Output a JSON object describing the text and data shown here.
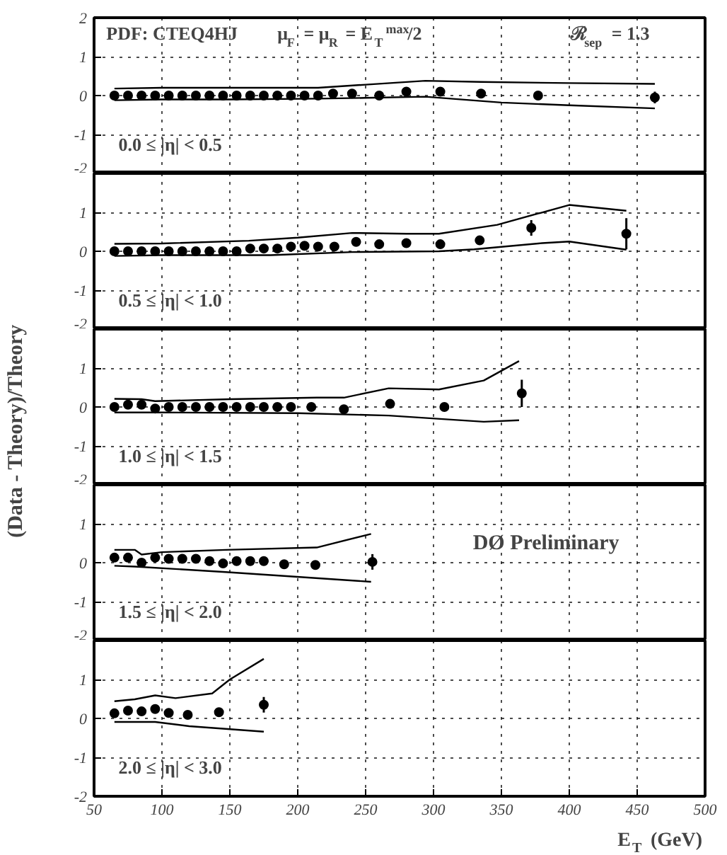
{
  "chart_data": [
    {
      "type": "scatter",
      "title": "0.0 ≤ |η| < 0.5",
      "annotations": [
        "PDF: CTEQ4HJ",
        "μ$_{F}$ = μ$_{R}$ = E$_{T}$$^{max}$/2",
        "ℛ$_{sep}$ = 1.3"
      ],
      "xlim": [
        50,
        500
      ],
      "ylim": [
        -2,
        2
      ],
      "xticks": [
        50,
        100,
        150,
        200,
        250,
        300,
        350,
        400,
        450,
        500
      ],
      "yticks": [
        -2,
        -1,
        0,
        1,
        2
      ],
      "grid": true,
      "tick_labels": "y",
      "x": [
        65,
        75,
        85,
        95,
        105,
        115,
        125,
        135,
        145,
        155,
        165,
        175,
        185,
        195,
        205,
        215,
        226,
        240,
        260,
        280,
        305,
        335,
        377,
        463
      ],
      "series": [
        {
          "color": "#000000",
          "marker": "circle",
          "values": [
            0,
            0,
            0,
            0,
            0,
            0,
            0,
            0,
            0,
            0,
            0,
            0,
            0,
            0,
            0,
            0,
            0.05,
            0.05,
            0,
            0.1,
            0.1,
            0.05,
            0,
            -0.05
          ],
          "errors": [
            null,
            null,
            null,
            null,
            null,
            null,
            null,
            null,
            null,
            null,
            null,
            null,
            null,
            null,
            null,
            null,
            null,
            null,
            null,
            null,
            null,
            null,
            null,
            0.15
          ]
        },
        {
          "type": "line",
          "color": "#000000",
          "x": [
            65,
            100,
            150,
            215,
            250,
            294,
            335,
            400,
            463
          ],
          "values": [
            0.18,
            0.2,
            0.2,
            0.2,
            0.28,
            0.38,
            0.35,
            0.32,
            0.3
          ]
        },
        {
          "type": "line",
          "color": "#000000",
          "x": [
            65,
            100,
            150,
            215,
            250,
            294,
            350,
            400,
            463
          ],
          "values": [
            -0.12,
            -0.1,
            -0.1,
            -0.08,
            -0.06,
            -0.03,
            -0.18,
            -0.25,
            -0.33
          ]
        }
      ]
    },
    {
      "type": "scatter",
      "title": "0.5 ≤ |η| < 1.0",
      "xlim": [
        50,
        500
      ],
      "ylim": [
        -2,
        2
      ],
      "xticks": [
        50,
        100,
        150,
        200,
        250,
        300,
        350,
        400,
        450,
        500
      ],
      "yticks": [
        -2,
        -1,
        0,
        1
      ],
      "grid": true,
      "tick_labels": "y",
      "x": [
        65,
        75,
        85,
        95,
        105,
        115,
        125,
        135,
        145,
        155,
        165,
        175,
        185,
        195,
        205,
        215,
        227,
        243,
        260,
        280,
        305,
        334,
        372,
        442
      ],
      "series": [
        {
          "color": "#000000",
          "marker": "circle",
          "values": [
            0,
            0,
            0,
            0,
            0,
            0,
            0,
            0,
            0,
            0,
            0.07,
            0.07,
            0.07,
            0.12,
            0.14,
            0.12,
            0.12,
            0.24,
            0.18,
            0.21,
            0.18,
            0.28,
            0.6,
            0.45
          ],
          "errors": [
            null,
            null,
            null,
            null,
            null,
            null,
            null,
            null,
            null,
            null,
            null,
            null,
            null,
            null,
            null,
            null,
            null,
            null,
            null,
            null,
            null,
            0.1,
            0.2,
            0.4
          ]
        },
        {
          "type": "line",
          "color": "#000000",
          "x": [
            65,
            100,
            164,
            200,
            240,
            280,
            304,
            347,
            400,
            442
          ],
          "values": [
            0.19,
            0.2,
            0.27,
            0.35,
            0.47,
            0.45,
            0.45,
            0.68,
            1.19,
            1.04
          ]
        },
        {
          "type": "line",
          "color": "#000000",
          "x": [
            65,
            100,
            180,
            240,
            304,
            330,
            380,
            400,
            442
          ],
          "values": [
            -0.12,
            -0.1,
            -0.1,
            -0.02,
            0,
            0.05,
            0.21,
            0.25,
            0.04
          ]
        }
      ]
    },
    {
      "type": "scatter",
      "title": "1.0 ≤ |η| < 1.5",
      "ylabel": "(Data - Theory)/Theory",
      "xlim": [
        50,
        500
      ],
      "ylim": [
        -2,
        2
      ],
      "xticks": [
        50,
        100,
        150,
        200,
        250,
        300,
        350,
        400,
        450,
        500
      ],
      "yticks": [
        -2,
        -1,
        0,
        1
      ],
      "grid": true,
      "tick_labels": "y",
      "x": [
        65,
        75,
        85,
        95,
        105,
        115,
        125,
        135,
        145,
        155,
        165,
        175,
        185,
        195,
        210,
        234,
        268,
        308,
        365
      ],
      "series": [
        {
          "color": "#000000",
          "marker": "circle",
          "values": [
            0,
            0.06,
            0.06,
            -0.04,
            0,
            0,
            0,
            0,
            0,
            0,
            0,
            0,
            0,
            0,
            0,
            -0.06,
            0.08,
            0,
            0.35
          ],
          "errors": [
            null,
            null,
            null,
            null,
            null,
            null,
            null,
            null,
            null,
            null,
            null,
            null,
            null,
            null,
            null,
            null,
            null,
            0.1,
            0.35
          ]
        },
        {
          "type": "line",
          "color": "#000000",
          "x": [
            65,
            85,
            95,
            150,
            214,
            234,
            267,
            304,
            337,
            363
          ],
          "values": [
            0.21,
            0.2,
            0.15,
            0.2,
            0.24,
            0.24,
            0.48,
            0.45,
            0.68,
            1.18
          ]
        },
        {
          "type": "line",
          "color": "#000000",
          "x": [
            65,
            100,
            200,
            267,
            337,
            363
          ],
          "values": [
            -0.14,
            -0.14,
            -0.16,
            -0.22,
            -0.38,
            -0.34
          ]
        }
      ]
    },
    {
      "type": "scatter",
      "title": "1.5 ≤ |η| < 2.0",
      "annotations": [
        "DØ Preliminary"
      ],
      "xlim": [
        50,
        500
      ],
      "ylim": [
        -2,
        2
      ],
      "xticks": [
        50,
        100,
        150,
        200,
        250,
        300,
        350,
        400,
        450,
        500
      ],
      "yticks": [
        -2,
        -1,
        0,
        1
      ],
      "grid": true,
      "tick_labels": "y",
      "x": [
        65,
        75,
        85,
        95,
        105,
        115,
        125,
        135,
        145,
        155,
        165,
        175,
        190,
        213,
        255
      ],
      "series": [
        {
          "color": "#000000",
          "marker": "circle",
          "values": [
            0.13,
            0.13,
            0,
            0.13,
            0.1,
            0.1,
            0.1,
            0.04,
            -0.02,
            0.04,
            0.04,
            0.04,
            -0.04,
            -0.06,
            0.02
          ],
          "errors": [
            null,
            null,
            null,
            null,
            null,
            null,
            null,
            null,
            null,
            null,
            null,
            null,
            null,
            null,
            0.2
          ]
        },
        {
          "type": "line",
          "color": "#000000",
          "x": [
            65,
            80,
            85,
            100,
            147,
            214,
            254
          ],
          "values": [
            0.33,
            0.33,
            0.21,
            0.27,
            0.33,
            0.39,
            0.74
          ]
        },
        {
          "type": "line",
          "color": "#000000",
          "x": [
            65,
            80,
            147,
            190,
            254
          ],
          "values": [
            -0.08,
            -0.1,
            -0.24,
            -0.34,
            -0.49
          ]
        }
      ]
    },
    {
      "type": "scatter",
      "title": "2.0 ≤ |η| < 3.0",
      "xlabel": "E$_{T}$ (GeV)",
      "xlim": [
        50,
        500
      ],
      "ylim": [
        -2,
        2
      ],
      "xticks": [
        50,
        100,
        150,
        200,
        250,
        300,
        350,
        400,
        450,
        500
      ],
      "yticks": [
        -2,
        -1,
        0,
        1
      ],
      "grid": true,
      "x": [
        65,
        75,
        85,
        95,
        105,
        119,
        142,
        175
      ],
      "series": [
        {
          "color": "#000000",
          "marker": "circle",
          "values": [
            0.13,
            0.2,
            0.18,
            0.24,
            0.14,
            0.09,
            0.16,
            0.35
          ],
          "errors": [
            null,
            null,
            null,
            null,
            null,
            null,
            null,
            0.2
          ]
        },
        {
          "type": "line",
          "color": "#000000",
          "x": [
            65,
            80,
            95,
            110,
            137,
            150,
            175
          ],
          "values": [
            0.44,
            0.49,
            0.59,
            0.52,
            0.64,
            1.0,
            1.53
          ]
        },
        {
          "type": "line",
          "color": "#000000",
          "x": [
            65,
            95,
            120,
            175
          ],
          "values": [
            -0.09,
            -0.09,
            -0.2,
            -0.34
          ]
        }
      ]
    }
  ]
}
